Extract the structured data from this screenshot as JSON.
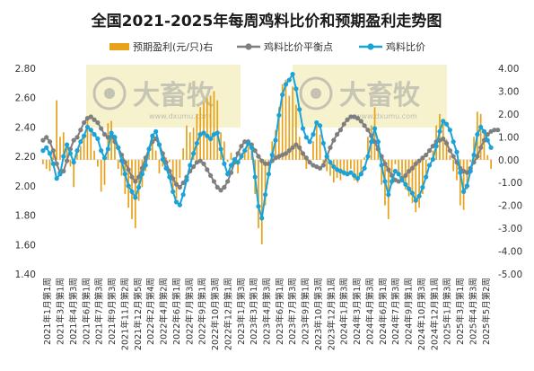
{
  "chart_data": {
    "type": "bar",
    "title": "全国2021-2025年每周鸡料比价和预期盈利走势图",
    "legend_position": "top",
    "y_left": {
      "lim": [
        1.4,
        2.8
      ],
      "ticks": [
        "1.40",
        "1.60",
        "1.80",
        "2.00",
        "2.20",
        "2.40",
        "2.60",
        "2.80"
      ]
    },
    "y_right": {
      "lim": [
        -5,
        4
      ],
      "ticks": [
        "4.00",
        "3.00",
        "2.00",
        "1.00",
        "0.00",
        "-1.00",
        "-2.00",
        "-3.00",
        "-4.00",
        "-5.00"
      ]
    },
    "x_tick_labels": [
      "2021年1月第1周",
      "2021年3月第1周",
      "2021年4月第3周",
      "2021年6月第1周",
      "2021年7月第3周",
      "2021年9月第3周",
      "2021年11月第2周",
      "2021年12月第5周",
      "2022年2月第4周",
      "2022年4月第2周",
      "2022年6月第1周",
      "2022年7月第3周",
      "2022年9月第1周",
      "2022年10月第3周",
      "2022年12月第1周",
      "2023年1月第3周",
      "2023年3月第1周",
      "2023年4月第3周",
      "2023年6月第1周",
      "2023年7月第3周",
      "2023年9月第1周",
      "2023年10月第3周",
      "2023年12月第1周",
      "2024年1月第3周",
      "2024年3月第1周",
      "2024年4月第3周",
      "2024年6月第1周",
      "2024年7月第3周",
      "2024年9月第1周",
      "2024年10月第3周",
      "2024年12月第1周",
      "2025年1月第3周",
      "2025年3月第1周",
      "2025年4月第3周",
      "2025年5月第2周"
    ],
    "series": [
      {
        "name": "预期盈利(元/只)右",
        "kind": "bar",
        "axis": "right",
        "color": "#E8A21A",
        "values": [
          -0.2,
          -0.4,
          -0.5,
          0.3,
          2.6,
          1.0,
          1.2,
          0.5,
          -0.3,
          -1.2,
          0.4,
          0.6,
          1.0,
          1.8,
          1.2,
          0.4,
          -0.3,
          -1.4,
          -1.1,
          1.6,
          1.7,
          1.1,
          -0.4,
          -0.7,
          -1.5,
          -2.1,
          -2.6,
          -3.0,
          -1.8,
          -1.2,
          -0.5,
          0.6,
          1.0,
          0.4,
          -0.6,
          -0.3,
          0.1,
          -0.1,
          -1.4,
          -1.7,
          -0.8,
          0.5,
          1.5,
          1.2,
          1.4,
          2.0,
          2.3,
          2.5,
          2.7,
          2.8,
          3.0,
          2.6,
          1.2,
          0.8,
          -0.1,
          0.3,
          -0.2,
          -0.6,
          0.3,
          0.5,
          0.9,
          0.6,
          -1.5,
          -3.0,
          -3.7,
          -2.0,
          -0.5,
          0.8,
          1.3,
          2.3,
          3.3,
          3.5,
          2.8,
          3.2,
          2.4,
          1.0,
          0.2,
          -0.4,
          -0.2,
          0.8,
          1.6,
          1.1,
          -0.3,
          -0.5,
          -0.7,
          -1.0,
          -0.8,
          -0.9,
          -0.7,
          -0.6,
          -0.4,
          -0.9,
          -1.0,
          -0.6,
          0.1,
          1.0,
          1.5,
          2.3,
          0.9,
          -1.1,
          -2.0,
          -2.6,
          -1.1,
          -0.2,
          -0.7,
          -1.0,
          -1.3,
          -1.6,
          -1.9,
          -2.3,
          -2.1,
          -1.5,
          -0.7,
          0.1,
          0.4,
          1.5,
          2.0,
          1.6,
          0.9,
          0.2,
          -0.5,
          -0.9,
          -2.0,
          -2.2,
          -1.3,
          -0.1,
          1.0,
          2.1,
          2.0,
          1.2,
          0.2,
          -0.4
        ]
      },
      {
        "name": "鸡料比价平衡点",
        "kind": "line",
        "axis": "left",
        "color": "#7F7F7F",
        "values": [
          2.31,
          2.33,
          2.3,
          2.24,
          2.15,
          2.09,
          2.1,
          2.17,
          2.25,
          2.31,
          2.33,
          2.38,
          2.43,
          2.46,
          2.47,
          2.45,
          2.43,
          2.39,
          2.35,
          2.33,
          2.34,
          2.3,
          2.26,
          2.21,
          2.16,
          2.11,
          2.06,
          2.03,
          2.06,
          2.12,
          2.19,
          2.25,
          2.3,
          2.32,
          2.28,
          2.22,
          2.16,
          2.1,
          2.05,
          2.01,
          1.99,
          2.02,
          2.06,
          2.1,
          2.13,
          2.16,
          2.17,
          2.15,
          2.11,
          2.07,
          2.03,
          1.99,
          1.97,
          1.99,
          2.03,
          2.09,
          2.16,
          2.22,
          2.27,
          2.3,
          2.3,
          2.28,
          2.24,
          2.2,
          2.17,
          2.15,
          2.15,
          2.17,
          2.19,
          2.2,
          2.21,
          2.22,
          2.24,
          2.26,
          2.28,
          2.26,
          2.22,
          2.19,
          2.16,
          2.14,
          2.13,
          2.12,
          2.14,
          2.2,
          2.26,
          2.31,
          2.35,
          2.38,
          2.42,
          2.45,
          2.47,
          2.47,
          2.46,
          2.44,
          2.41,
          2.38,
          2.34,
          2.3,
          2.25,
          2.2,
          2.15,
          2.11,
          2.07,
          2.04,
          2.03,
          2.05,
          2.07,
          2.1,
          2.12,
          2.15,
          2.17,
          2.19,
          2.21,
          2.24,
          2.27,
          2.3,
          2.31,
          2.32,
          2.29,
          2.24,
          2.2,
          2.16,
          2.12,
          2.1,
          2.09,
          2.12,
          2.16,
          2.2,
          2.26,
          2.31,
          2.35,
          2.37,
          2.38,
          2.38
        ]
      },
      {
        "name": "鸡料比价",
        "kind": "line",
        "axis": "left",
        "color": "#1BA3D8",
        "values": [
          2.24,
          2.26,
          2.22,
          2.15,
          2.05,
          2.08,
          2.2,
          2.28,
          2.22,
          2.16,
          2.24,
          2.3,
          2.34,
          2.4,
          2.38,
          2.35,
          2.32,
          2.24,
          2.19,
          2.25,
          2.36,
          2.33,
          2.26,
          2.17,
          2.08,
          2.0,
          1.96,
          1.92,
          1.99,
          2.08,
          2.14,
          2.25,
          2.34,
          2.37,
          2.28,
          2.18,
          2.12,
          2.06,
          1.96,
          1.89,
          1.87,
          1.94,
          2.04,
          2.14,
          2.22,
          2.29,
          2.35,
          2.36,
          2.34,
          2.32,
          2.35,
          2.36,
          2.25,
          2.15,
          2.08,
          2.14,
          2.18,
          2.16,
          2.2,
          2.24,
          2.29,
          2.26,
          2.06,
          1.86,
          1.78,
          1.94,
          2.08,
          2.21,
          2.31,
          2.48,
          2.62,
          2.69,
          2.72,
          2.76,
          2.66,
          2.52,
          2.39,
          2.33,
          2.3,
          2.35,
          2.43,
          2.41,
          2.29,
          2.2,
          2.16,
          2.13,
          2.11,
          2.1,
          2.09,
          2.08,
          2.09,
          2.07,
          2.05,
          2.08,
          2.12,
          2.2,
          2.3,
          2.39,
          2.3,
          2.14,
          2.03,
          1.94,
          2.03,
          2.1,
          2.08,
          2.04,
          2.01,
          1.98,
          1.95,
          1.9,
          1.93,
          1.99,
          2.06,
          2.14,
          2.18,
          2.27,
          2.37,
          2.44,
          2.42,
          2.38,
          2.3,
          2.23,
          2.09,
          1.96,
          2.0,
          2.1,
          2.21,
          2.35,
          2.4,
          2.37,
          2.31,
          2.26
        ]
      }
    ],
    "watermark": {
      "brand": "大畜牧",
      "site": "www.dxumu.com"
    }
  }
}
